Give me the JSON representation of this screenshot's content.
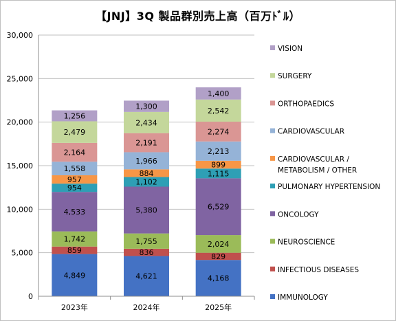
{
  "chart_data": {
    "type": "bar",
    "stacked": true,
    "title": "【JNJ】3Q 製品群別売上高（百万ﾄﾞﾙ）",
    "categories": [
      "2023年",
      "2024年",
      "2025年"
    ],
    "ylim": [
      0,
      30000
    ],
    "yticks": [
      "0",
      "5,000",
      "10,000",
      "15,000",
      "20,000",
      "25,000",
      "30,000"
    ],
    "grid": true,
    "legend_position": "right",
    "series": [
      {
        "name": "IMMUNOLOGY",
        "color": "#4472C4",
        "values": [
          4849,
          4621,
          4168
        ],
        "labels": [
          "4,849",
          "4,621",
          "4,168"
        ]
      },
      {
        "name": "INFECTIOUS DISEASES",
        "color": "#C0504D",
        "values": [
          859,
          836,
          829
        ],
        "labels": [
          "859",
          "836",
          "829"
        ]
      },
      {
        "name": "NEUROSCIENCE",
        "color": "#9BBB59",
        "values": [
          1742,
          1755,
          2024
        ],
        "labels": [
          "1,742",
          "1,755",
          "2,024"
        ]
      },
      {
        "name": "ONCOLOGY",
        "color": "#8064A2",
        "values": [
          4533,
          5380,
          6529
        ],
        "labels": [
          "4,533",
          "5,380",
          "6,529"
        ]
      },
      {
        "name": "PULMONARY HYPERTENSION",
        "color": "#2E9FB5",
        "values": [
          954,
          1102,
          1115
        ],
        "labels": [
          "954",
          "1,102",
          "1,115"
        ]
      },
      {
        "name": "CARDIOVASCULAR / METABOLISM / OTHER",
        "legend_lines": [
          "CARDIOVASCULAR /",
          "METABOLISM / OTHER"
        ],
        "color": "#F79646",
        "values": [
          957,
          884,
          899
        ],
        "labels": [
          "957",
          "884",
          "899"
        ]
      },
      {
        "name": "CARDIOVASCULAR",
        "color": "#95B3D7",
        "values": [
          1558,
          1966,
          2213
        ],
        "labels": [
          "1,558",
          "1,966",
          "2,213"
        ]
      },
      {
        "name": "ORTHOPAEDICS",
        "color": "#DA9694",
        "values": [
          2164,
          2191,
          2274
        ],
        "labels": [
          "2,164",
          "2,191",
          "2,274"
        ]
      },
      {
        "name": "SURGERY",
        "color": "#C4D79B",
        "values": [
          2479,
          2434,
          2542
        ],
        "labels": [
          "2,479",
          "2,434",
          "2,542"
        ]
      },
      {
        "name": "VISION",
        "color": "#B1A0C7",
        "values": [
          1256,
          1300,
          1400
        ],
        "labels": [
          "1,256",
          "1,300",
          "1,400"
        ]
      }
    ]
  }
}
